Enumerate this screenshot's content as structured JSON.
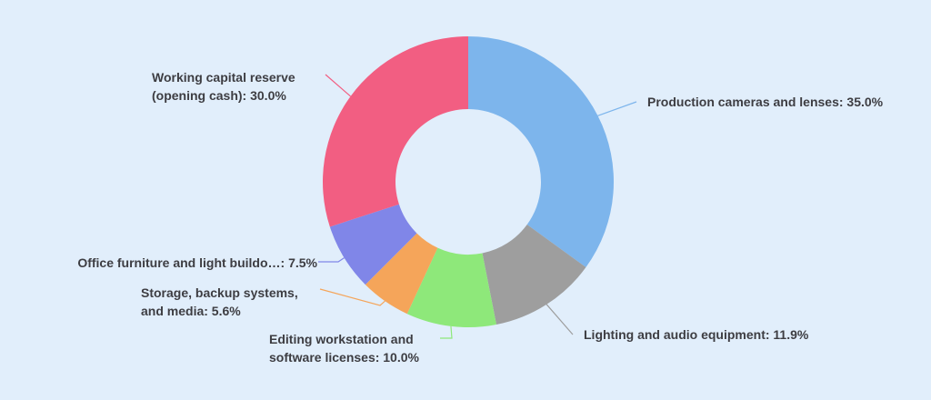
{
  "chart_data": {
    "type": "pie",
    "donut": true,
    "start": "top",
    "direction": "clockwise",
    "legend": "none",
    "slices": [
      {
        "label": "Production cameras and lenses",
        "value": 35.0,
        "display": [
          "Production cameras and lenses: 35.0%"
        ],
        "color": "#7db5ec"
      },
      {
        "label": "Lighting and audio equipment",
        "value": 11.9,
        "display": [
          "Lighting and audio equipment: 11.9%"
        ],
        "color": "#9e9e9e"
      },
      {
        "label": "Editing workstation and software licenses",
        "value": 10.0,
        "display": [
          "Editing workstation and",
          "software licenses: 10.0%"
        ],
        "color": "#8ee87a"
      },
      {
        "label": "Storage, backup systems, and media",
        "value": 5.6,
        "display": [
          "Storage, backup systems,",
          "and media: 5.6%"
        ],
        "color": "#f5a55a"
      },
      {
        "label": "Office furniture and light buildo...",
        "value": 7.5,
        "display": [
          "Office furniture and light buildo…: 7.5%"
        ],
        "color": "#8086e8"
      },
      {
        "label": "Working capital reserve (opening cash)",
        "value": 30.0,
        "display": [
          "Working capital reserve",
          "(opening cash): 30.0%"
        ],
        "color": "#f25e82"
      }
    ]
  }
}
